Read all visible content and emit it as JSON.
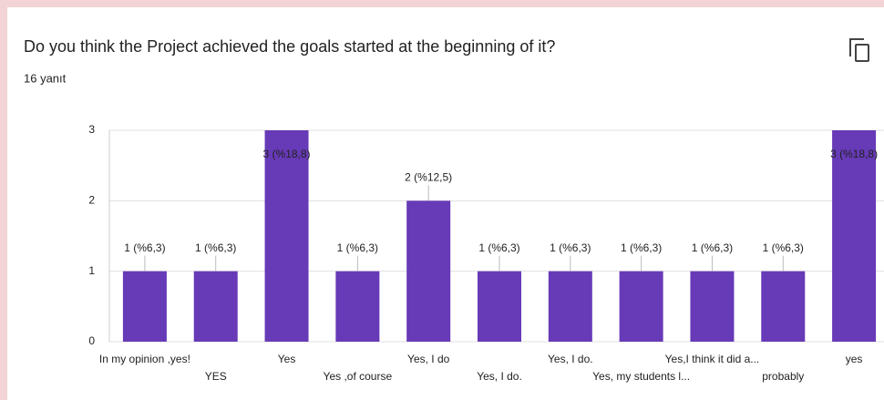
{
  "chart_data": {
    "type": "bar",
    "title": "Do you think the Project achieved the goals started at the beginning of it?",
    "subtitle": "16 yanıt",
    "categories": [
      "In my opinion ,yes!",
      "YES",
      "Yes",
      "Yes ,of course",
      "Yes, I do",
      "Yes, I do.",
      "Yes, I do.",
      "Yes, my students l...",
      "Yes,I think it did a...",
      "probably",
      "yes"
    ],
    "values": [
      1,
      1,
      3,
      1,
      2,
      1,
      1,
      1,
      1,
      1,
      3
    ],
    "value_labels": [
      "1 (%6,3)",
      "1 (%6,3)",
      "3 (%18,8)",
      "1 (%6,3)",
      "2 (%12,5)",
      "1 (%6,3)",
      "1 (%6,3)",
      "1 (%6,3)",
      "1 (%6,3)",
      "1 (%6,3)",
      "3 (%18,8)"
    ],
    "color": "#673ab7",
    "ylim": [
      0,
      3
    ],
    "yticks": [
      0,
      1,
      2,
      3
    ],
    "grid": true
  }
}
